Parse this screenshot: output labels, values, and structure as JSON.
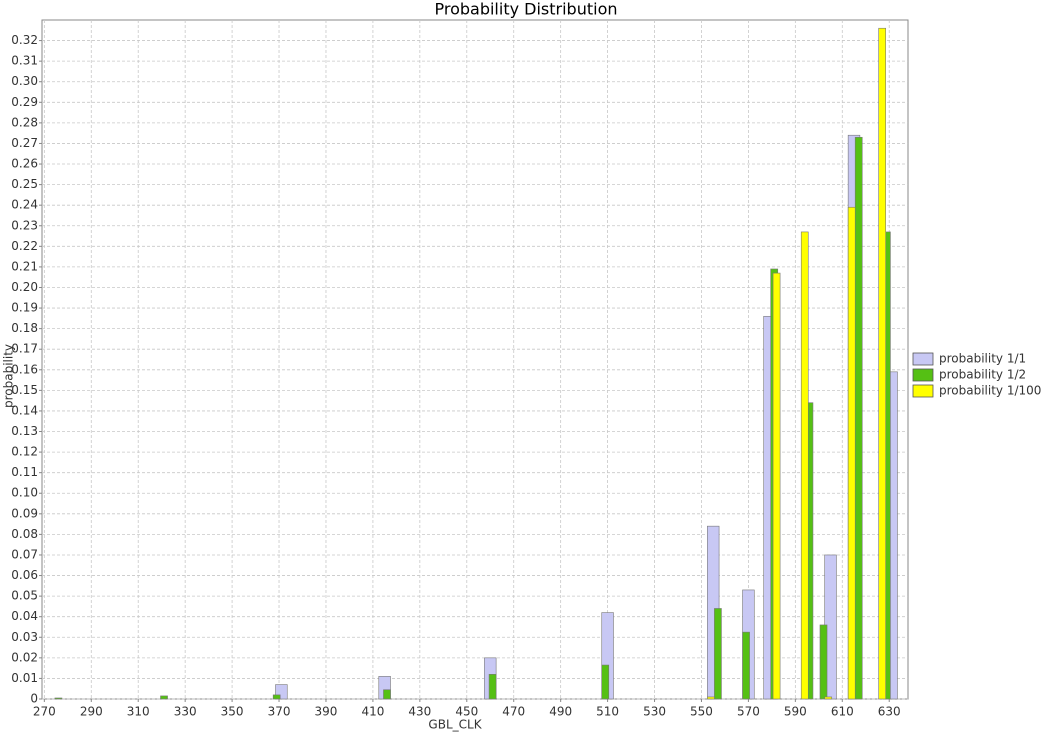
{
  "chart_data": {
    "type": "bar",
    "title": "Probability Distribution",
    "x_label": "GBL_CLK",
    "y_label": "probability",
    "xlim": [
      269,
      638
    ],
    "ylim": [
      0,
      0.33
    ],
    "xticks": [
      270,
      290,
      310,
      330,
      350,
      370,
      390,
      410,
      430,
      450,
      470,
      490,
      510,
      530,
      550,
      570,
      590,
      610,
      630
    ],
    "yticks": [
      0,
      0.01,
      0.02,
      0.03,
      0.04,
      0.05,
      0.06,
      0.07,
      0.08,
      0.09,
      {
        "value": 0.1,
        "label": "0.10"
      },
      0.11,
      0.12,
      0.13,
      0.14,
      0.15,
      0.16,
      0.17,
      0.18,
      0.19,
      {
        "value": 0.2,
        "label": "0.20"
      },
      0.21,
      0.22,
      0.23,
      0.24,
      0.25,
      0.26,
      0.27,
      0.28,
      0.29,
      {
        "value": 0.3,
        "label": "0.30"
      },
      0.31,
      0.32
    ],
    "grid": true,
    "legend": "right",
    "series": [
      {
        "name": "probability 1/1",
        "color": "#c8c8f4",
        "x": [
          371,
          415,
          460,
          510,
          555,
          570,
          579,
          605,
          615,
          631
        ],
        "values": [
          0.007,
          0.011,
          0.02,
          0.042,
          0.084,
          0.053,
          0.186,
          0.07,
          0.274,
          0.159
        ]
      },
      {
        "name": "probability 1/2",
        "color": "#55c014",
        "x": [
          276,
          321,
          369,
          416,
          461,
          509,
          557,
          569,
          581,
          596,
          602,
          617,
          629
        ],
        "values": [
          0.0005,
          0.0015,
          0.002,
          0.0045,
          0.012,
          0.0165,
          0.044,
          0.0325,
          0.209,
          0.144,
          0.036,
          0.273,
          0.227
        ]
      },
      {
        "name": "probability 1/100",
        "color": "#ffff00",
        "x": [
          554,
          582,
          594,
          604,
          614,
          627
        ],
        "values": [
          0.001,
          0.207,
          0.227,
          0.001,
          0.239,
          0.326
        ]
      }
    ]
  }
}
